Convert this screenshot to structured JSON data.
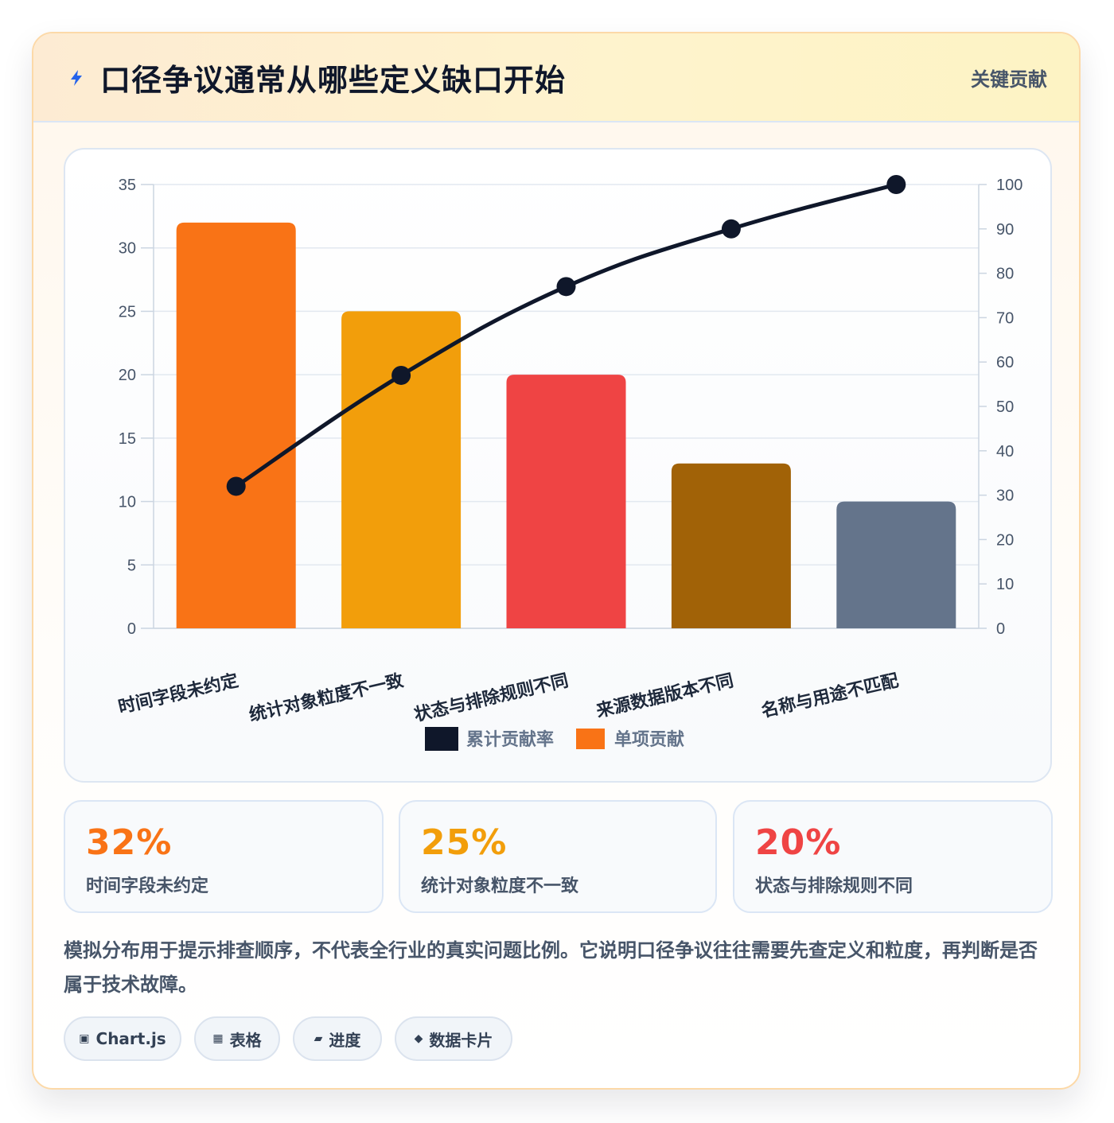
{
  "header": {
    "title": "口径争议通常从哪些定义缺口开始",
    "badge": "关键贡献",
    "icon": "lightning-bolt-icon"
  },
  "chart_data": {
    "type": "bar",
    "categories": [
      "时间字段未约定",
      "统计对象粒度不一致",
      "状态与排除规则不同",
      "来源数据版本不同",
      "名称与用途不匹配"
    ],
    "series": [
      {
        "name": "单项贡献",
        "type": "bar",
        "axis": "left",
        "values": [
          32,
          25,
          20,
          13,
          10
        ],
        "colors": [
          "#f97316",
          "#f29e0b",
          "#ef4444",
          "#a16207",
          "#64748b"
        ]
      },
      {
        "name": "累计贡献率",
        "type": "line",
        "axis": "right",
        "values": [
          32,
          57,
          77,
          90,
          100
        ],
        "color": "#0f172a"
      }
    ],
    "y_left": {
      "min": 0,
      "max": 35,
      "ticks": [
        0,
        5,
        10,
        15,
        20,
        25,
        30,
        35
      ]
    },
    "y_right": {
      "min": 0,
      "max": 100,
      "ticks": [
        0,
        10,
        20,
        30,
        40,
        50,
        60,
        70,
        80,
        90,
        100
      ]
    },
    "grid": true,
    "legend": {
      "position": "bottom",
      "order": [
        "累计贡献率",
        "单项贡献"
      ]
    },
    "xlabel": "",
    "ylabel": ""
  },
  "stats": [
    {
      "value": "32%",
      "label": "时间字段未约定",
      "color": "#f97316"
    },
    {
      "value": "25%",
      "label": "统计对象粒度不一致",
      "color": "#f29e0b"
    },
    {
      "value": "20%",
      "label": "状态与排除规则不同",
      "color": "#ef4444"
    }
  ],
  "note": "模拟分布用于提示排查顺序，不代表全行业的真实问题比例。它说明口径争议往往需要先查定义和粒度，再判断是否属于技术故障。",
  "tags": [
    {
      "icon": "▣",
      "icon_name": "chart-icon",
      "label": "Chart.js"
    },
    {
      "icon": "▦",
      "icon_name": "table-icon",
      "label": "表格"
    },
    {
      "icon": "▰",
      "icon_name": "progress-icon",
      "label": "进度"
    },
    {
      "icon": "◆",
      "icon_name": "diamond-icon",
      "label": "数据卡片"
    }
  ]
}
